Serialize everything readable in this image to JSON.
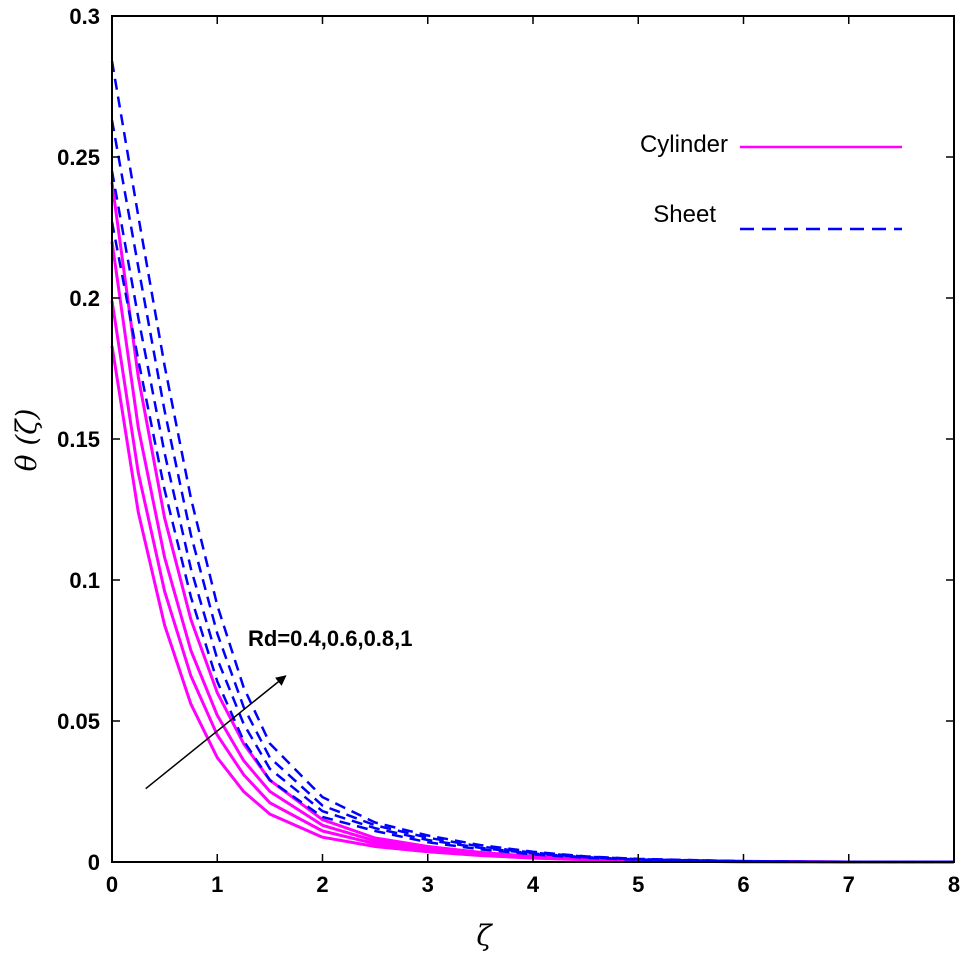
{
  "chart_data": {
    "type": "line",
    "title": "",
    "xlabel": "ζ",
    "ylabel": "θ (ζ)",
    "xlim": [
      0,
      8
    ],
    "ylim": [
      0,
      0.3
    ],
    "x_ticks": [
      "0",
      "1",
      "2",
      "3",
      "4",
      "5",
      "6",
      "7",
      "8"
    ],
    "y_ticks": [
      "0",
      "0.05",
      "0.1",
      "0.15",
      "0.2",
      "0.25",
      "0.3"
    ],
    "grid": false,
    "legend_position": "top-right",
    "legend": [
      {
        "label": "Cylinder",
        "color": "#ff00ff",
        "style": "solid"
      },
      {
        "label": "Sheet",
        "color": "#0000ff",
        "style": "dashed"
      }
    ],
    "annotation": {
      "text": "Rd=0.4,0.6,0.8,1",
      "arrow": "increasing Rd",
      "from": [
        0.32,
        0.026
      ],
      "to": [
        1.65,
        0.066
      ]
    },
    "series": [
      {
        "group": "Cylinder",
        "color": "#ff00ff",
        "style": "solid",
        "x": [
          0,
          0.25,
          0.5,
          0.75,
          1,
          1.25,
          1.5,
          2,
          2.5,
          3,
          3.5,
          4,
          4.5,
          5,
          6,
          7,
          8
        ],
        "values": [
          0.183,
          0.124,
          0.084,
          0.056,
          0.037,
          0.025,
          0.017,
          0.0088,
          0.0055,
          0.0036,
          0.0023,
          0.0014,
          0.0008,
          0.0004,
          0.0001,
          0.0,
          0.0
        ]
      },
      {
        "group": "Cylinder",
        "color": "#ff00ff",
        "style": "solid",
        "x": [
          0,
          0.25,
          0.5,
          0.75,
          1,
          1.25,
          1.5,
          2,
          2.5,
          3,
          3.5,
          4,
          4.5,
          5,
          6,
          7,
          8
        ],
        "values": [
          0.199,
          0.138,
          0.096,
          0.066,
          0.045,
          0.031,
          0.021,
          0.011,
          0.0065,
          0.0042,
          0.0027,
          0.0016,
          0.0009,
          0.0005,
          0.0001,
          0.0,
          0.0
        ]
      },
      {
        "group": "Cylinder",
        "color": "#ff00ff",
        "style": "solid",
        "x": [
          0,
          0.25,
          0.5,
          0.75,
          1,
          1.25,
          1.5,
          2,
          2.5,
          3,
          3.5,
          4,
          4.5,
          5,
          6,
          7,
          8
        ],
        "values": [
          0.22,
          0.154,
          0.108,
          0.075,
          0.052,
          0.036,
          0.025,
          0.013,
          0.0075,
          0.0048,
          0.003,
          0.0018,
          0.001,
          0.0006,
          0.0002,
          0.0,
          0.0
        ]
      },
      {
        "group": "Cylinder",
        "color": "#ff00ff",
        "style": "solid",
        "x": [
          0,
          0.25,
          0.5,
          0.75,
          1,
          1.25,
          1.5,
          2,
          2.5,
          3,
          3.5,
          4,
          4.5,
          5,
          6,
          7,
          8
        ],
        "values": [
          0.241,
          0.172,
          0.122,
          0.086,
          0.06,
          0.042,
          0.029,
          0.015,
          0.0085,
          0.0055,
          0.0034,
          0.002,
          0.0012,
          0.0007,
          0.0002,
          0.0,
          0.0
        ]
      },
      {
        "group": "Sheet",
        "color": "#0000ff",
        "style": "dashed",
        "x": [
          0,
          0.25,
          0.5,
          0.75,
          1,
          1.25,
          1.5,
          2,
          2.5,
          3,
          3.5,
          4,
          4.5,
          5,
          6,
          7,
          8
        ],
        "values": [
          0.227,
          0.178,
          0.132,
          0.094,
          0.064,
          0.043,
          0.029,
          0.016,
          0.011,
          0.007,
          0.0045,
          0.0027,
          0.0015,
          0.0008,
          0.0002,
          0.0,
          0.0
        ]
      },
      {
        "group": "Sheet",
        "color": "#0000ff",
        "style": "dashed",
        "x": [
          0,
          0.25,
          0.5,
          0.75,
          1,
          1.25,
          1.5,
          2,
          2.5,
          3,
          3.5,
          4,
          4.5,
          5,
          6,
          7,
          8
        ],
        "values": [
          0.245,
          0.193,
          0.145,
          0.104,
          0.072,
          0.049,
          0.033,
          0.018,
          0.012,
          0.0078,
          0.005,
          0.003,
          0.0017,
          0.0009,
          0.0002,
          0.0,
          0.0
        ]
      },
      {
        "group": "Sheet",
        "color": "#0000ff",
        "style": "dashed",
        "x": [
          0,
          0.25,
          0.5,
          0.75,
          1,
          1.25,
          1.5,
          2,
          2.5,
          3,
          3.5,
          4,
          4.5,
          5,
          6,
          7,
          8
        ],
        "values": [
          0.263,
          0.211,
          0.16,
          0.116,
          0.081,
          0.055,
          0.037,
          0.02,
          0.013,
          0.0086,
          0.0055,
          0.0033,
          0.0019,
          0.001,
          0.0003,
          0.0,
          0.0
        ]
      },
      {
        "group": "Sheet",
        "color": "#0000ff",
        "style": "dashed",
        "x": [
          0,
          0.25,
          0.5,
          0.75,
          1,
          1.25,
          1.5,
          2,
          2.5,
          3,
          3.5,
          4,
          4.5,
          5,
          6,
          7,
          8
        ],
        "values": [
          0.284,
          0.229,
          0.176,
          0.129,
          0.091,
          0.062,
          0.042,
          0.023,
          0.014,
          0.0094,
          0.006,
          0.0036,
          0.002,
          0.0011,
          0.0003,
          0.0,
          0.0
        ]
      }
    ]
  }
}
